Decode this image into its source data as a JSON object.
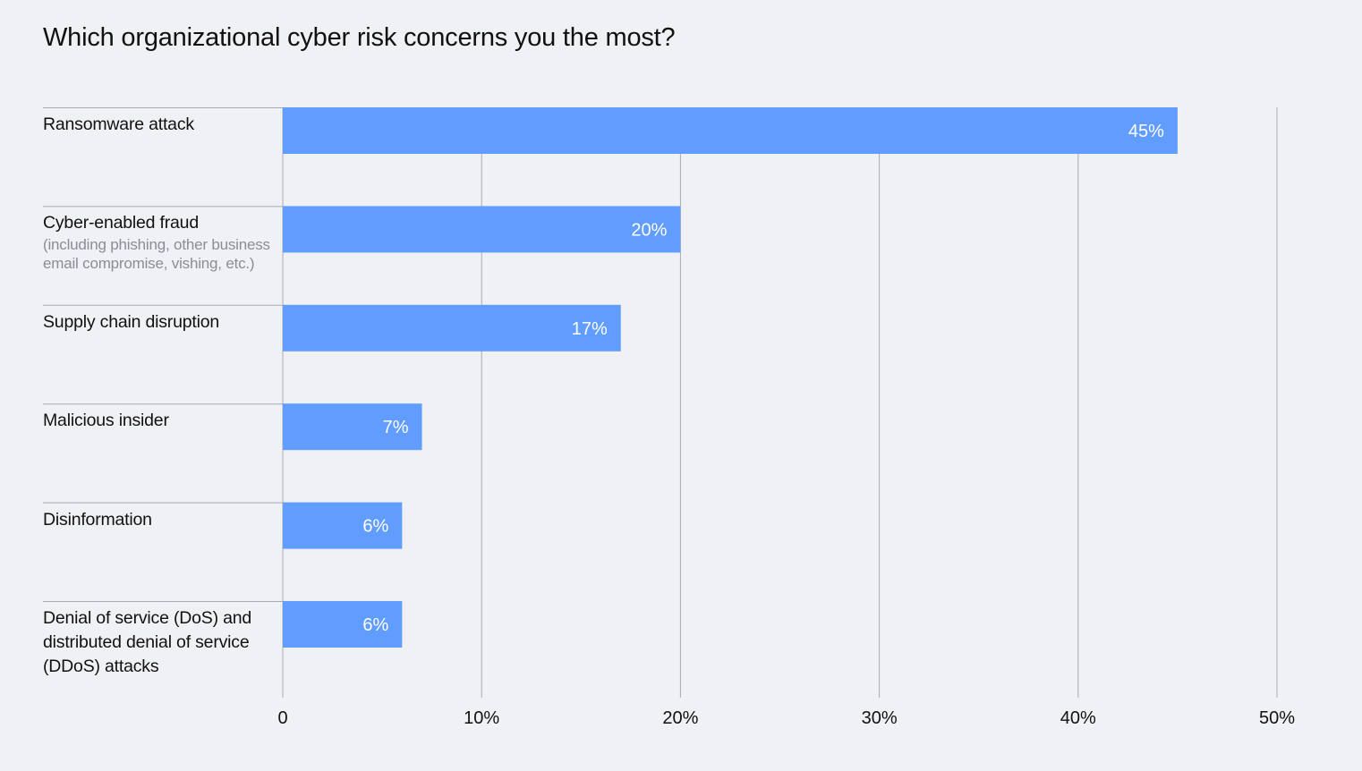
{
  "chart_data": {
    "type": "bar",
    "orientation": "horizontal",
    "title": "Which organizational cyber risk concerns you the most?",
    "categories": [
      {
        "label": "Ransomware attack",
        "sublabel": ""
      },
      {
        "label": "Cyber-enabled fraud",
        "sublabel": "(including phishing, other business email compromise, vishing, etc.)"
      },
      {
        "label": "Supply chain disruption",
        "sublabel": ""
      },
      {
        "label": "Malicious insider",
        "sublabel": ""
      },
      {
        "label": "Disinformation",
        "sublabel": ""
      },
      {
        "label": "Denial of service (DoS) and distributed denial of service (DDoS) attacks",
        "sublabel": ""
      }
    ],
    "values": [
      45,
      20,
      17,
      7,
      6,
      6
    ],
    "value_labels": [
      "45%",
      "20%",
      "17%",
      "7%",
      "6%",
      "6%"
    ],
    "xlim": [
      0,
      50
    ],
    "xticks": [
      0,
      10,
      20,
      30,
      40,
      50
    ],
    "xtick_labels": [
      "0",
      "10%",
      "20%",
      "30%",
      "40%",
      "50%"
    ],
    "xlabel": "",
    "ylabel": "",
    "grid": true,
    "legend": "none",
    "colors": {
      "bar": "#619dff",
      "bar_label": "#ffffff",
      "grid": "#a7aab3",
      "background": "#f0f1f5"
    }
  }
}
